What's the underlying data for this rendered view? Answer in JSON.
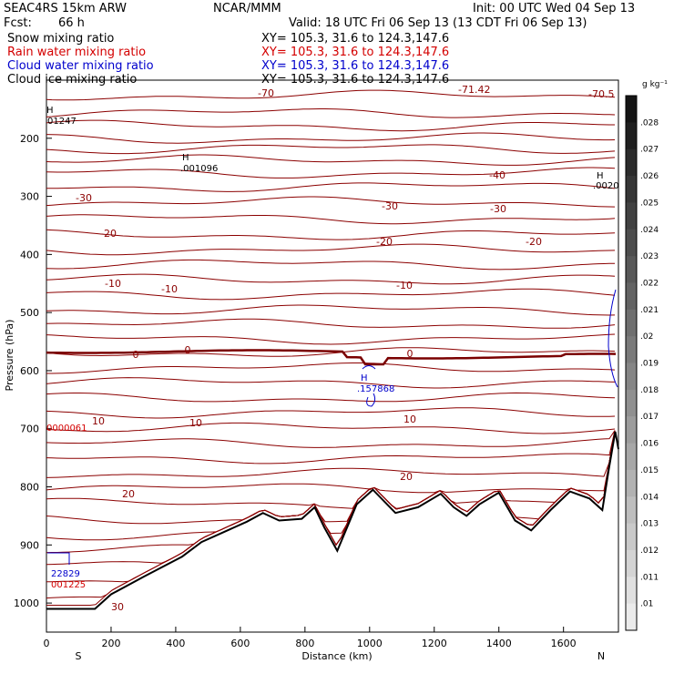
{
  "header": {
    "model": "SEAC4RS 15km ARW",
    "org": "NCAR/MMM",
    "init": "Init: 00 UTC Wed 04 Sep 13",
    "fcst_label": "Fcst:",
    "fcst_value": "66 h",
    "valid": "Valid: 18 UTC Fri 06 Sep 13 (13 CDT Fri 06 Sep 13)"
  },
  "fields": [
    {
      "name": "Snow mixing ratio",
      "xy": "XY= 105.3, 31.6 to 124.3,147.6",
      "color": "#000000"
    },
    {
      "name": "Rain water mixing ratio",
      "xy": "XY= 105.3, 31.6 to 124.3,147.6",
      "color": "#d40000"
    },
    {
      "name": "Cloud water mixing ratio",
      "xy": "XY= 105.3, 31.6 to 124.3,147.6",
      "color": "#0000cc"
    },
    {
      "name": "Cloud ice mixing ratio",
      "xy": "XY= 105.3, 31.6 to 124.3,147.6",
      "color": "#000000"
    }
  ],
  "colorbar": {
    "unit": "g kg⁻¹",
    "labels": [
      ".028",
      ".027",
      ".026",
      ".025",
      ".024",
      ".023",
      ".022",
      ".021",
      ".02",
      ".019",
      ".018",
      ".017",
      ".016",
      ".015",
      ".014",
      ".013",
      ".012",
      ".011",
      ".01"
    ]
  },
  "annotations": {
    "high_top_left": "H",
    "high_top_left_value": "01247",
    "high_mid": "H",
    "high_mid_value": ".001096",
    "high_right": "H",
    "high_right_value": ".0020",
    "cloud_high": "H",
    "cloud_high_value": ".157868",
    "rain_label": "0000061",
    "low_blue": "22829",
    "low_red": "001225",
    "top_min": "-71.42",
    "top_right": "-70.5"
  },
  "chart_data": {
    "type": "contour",
    "xlabel": "Distance (km)",
    "ylabel": "Pressure (hPa)",
    "x_ticks": [
      0,
      200,
      400,
      600,
      800,
      1000,
      1200,
      1400,
      1600
    ],
    "y_ticks": [
      200,
      300,
      400,
      500,
      600,
      700,
      800,
      900,
      1000
    ],
    "xlim": [
      0,
      1770
    ],
    "ylim": [
      1050,
      100
    ],
    "x_endpoints": {
      "left": "S",
      "right": "N"
    },
    "temperature_labels": [
      "-70",
      "-40",
      "-30",
      "-30",
      "-30",
      "-20",
      "-20",
      "-20",
      "-10",
      "-10",
      "-10",
      "0",
      "0",
      "0",
      "10",
      "10",
      "10",
      "20",
      "20",
      "30"
    ],
    "terrain": [
      [
        0,
        1010
      ],
      [
        150,
        1010
      ],
      [
        200,
        985
      ],
      [
        300,
        955
      ],
      [
        420,
        920
      ],
      [
        480,
        895
      ],
      [
        540,
        880
      ],
      [
        620,
        860
      ],
      [
        670,
        845
      ],
      [
        720,
        858
      ],
      [
        790,
        855
      ],
      [
        830,
        835
      ],
      [
        860,
        870
      ],
      [
        900,
        910
      ],
      [
        930,
        870
      ],
      [
        960,
        830
      ],
      [
        1010,
        805
      ],
      [
        1080,
        845
      ],
      [
        1150,
        835
      ],
      [
        1220,
        812
      ],
      [
        1260,
        835
      ],
      [
        1300,
        850
      ],
      [
        1340,
        830
      ],
      [
        1400,
        810
      ],
      [
        1450,
        858
      ],
      [
        1500,
        875
      ],
      [
        1560,
        840
      ],
      [
        1620,
        808
      ],
      [
        1680,
        820
      ],
      [
        1720,
        840
      ],
      [
        1740,
        770
      ],
      [
        1760,
        705
      ],
      [
        1770,
        735
      ]
    ]
  }
}
